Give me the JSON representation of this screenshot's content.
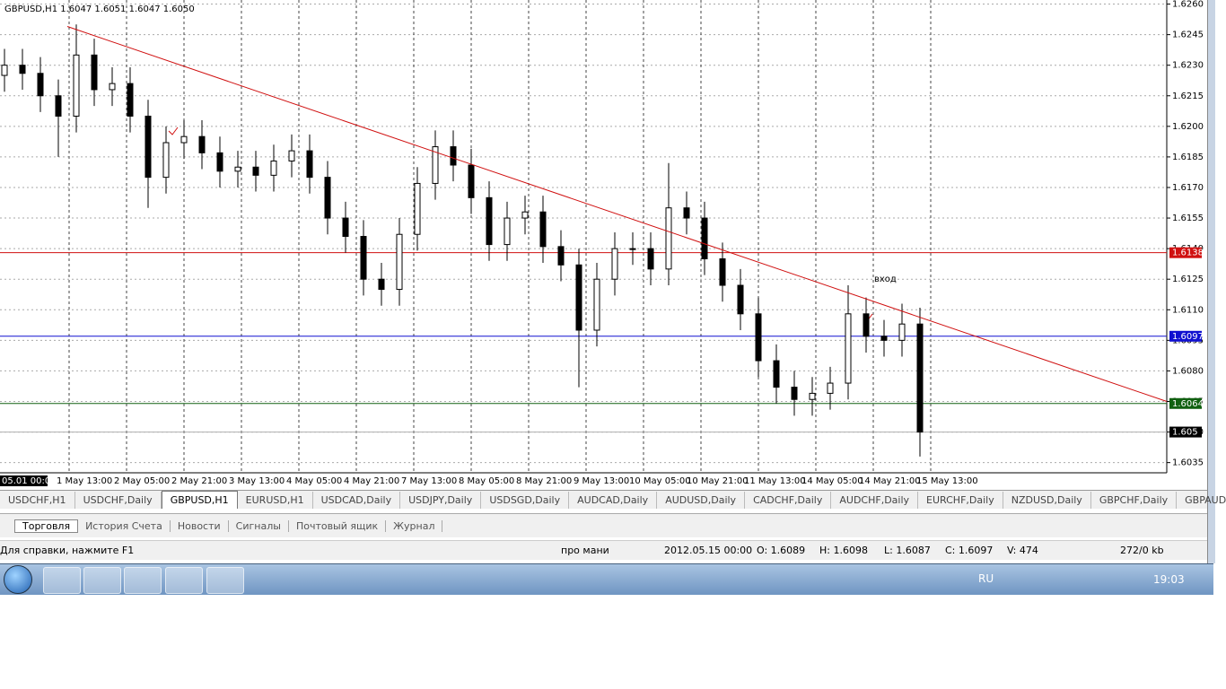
{
  "chart_data": {
    "type": "candlestick",
    "title": "GBPUSD,H1  1.6047 1.6051 1.6047 1.6050",
    "open": [
      1.6225,
      1.623,
      1.6226,
      1.6215,
      1.6205,
      1.6235,
      1.6218,
      1.6221,
      1.6205,
      1.6175,
      1.6192,
      1.6195,
      1.6187,
      1.6178,
      1.618,
      1.6176,
      1.6183,
      1.6188,
      1.6175,
      1.6155,
      1.6146,
      1.6125,
      1.612,
      1.6147,
      1.6172,
      1.619,
      1.6181,
      1.6165,
      1.6142,
      1.6155,
      1.6158,
      1.6141,
      1.6132,
      1.61,
      1.6125,
      1.614,
      1.614,
      1.613,
      1.616,
      1.6155,
      1.6135,
      1.6122,
      1.6108,
      1.6085,
      1.6072,
      1.6066,
      1.6069,
      1.6074,
      1.6108,
      1.6097,
      1.6095,
      1.6103
    ],
    "high": [
      1.6238,
      1.6238,
      1.6234,
      1.6223,
      1.625,
      1.6243,
      1.6229,
      1.6229,
      1.6213,
      1.62,
      1.6203,
      1.6203,
      1.6195,
      1.6188,
      1.6188,
      1.6191,
      1.6196,
      1.6196,
      1.6183,
      1.6163,
      1.6154,
      1.6133,
      1.6155,
      1.618,
      1.6198,
      1.6198,
      1.6189,
      1.6173,
      1.6163,
      1.6166,
      1.6166,
      1.6149,
      1.614,
      1.6133,
      1.6148,
      1.6148,
      1.6148,
      1.6182,
      1.6168,
      1.6163,
      1.6143,
      1.613,
      1.6116,
      1.6093,
      1.608,
      1.6077,
      1.6082,
      1.6122,
      1.6116,
      1.6105,
      1.6113,
      1.6111
    ],
    "low": [
      1.6217,
      1.6218,
      1.6207,
      1.6185,
      1.6197,
      1.621,
      1.621,
      1.6197,
      1.616,
      1.6167,
      1.6184,
      1.6179,
      1.617,
      1.617,
      1.6168,
      1.6168,
      1.6175,
      1.6167,
      1.6147,
      1.6138,
      1.6117,
      1.6112,
      1.6112,
      1.6139,
      1.6164,
      1.6173,
      1.6157,
      1.6134,
      1.6134,
      1.6147,
      1.6133,
      1.6124,
      1.6072,
      1.6092,
      1.6117,
      1.6132,
      1.6122,
      1.6122,
      1.6147,
      1.6127,
      1.6114,
      1.61,
      1.6077,
      1.6064,
      1.6058,
      1.6058,
      1.6061,
      1.6066,
      1.6089,
      1.6087,
      1.6087,
      1.6038
    ],
    "close": [
      1.623,
      1.6226,
      1.6215,
      1.6205,
      1.6235,
      1.6218,
      1.6221,
      1.6205,
      1.6175,
      1.6192,
      1.6195,
      1.6187,
      1.6178,
      1.618,
      1.6176,
      1.6183,
      1.6188,
      1.6175,
      1.6155,
      1.6146,
      1.6125,
      1.612,
      1.6147,
      1.6172,
      1.619,
      1.6181,
      1.6165,
      1.6142,
      1.6155,
      1.6158,
      1.6141,
      1.6132,
      1.61,
      1.6125,
      1.614,
      1.614,
      1.613,
      1.616,
      1.6155,
      1.6135,
      1.6122,
      1.6108,
      1.6085,
      1.6072,
      1.6066,
      1.6069,
      1.6074,
      1.6108,
      1.6097,
      1.6095,
      1.6103,
      1.605
    ],
    "ylim": [
      1.603,
      1.6262
    ],
    "yticks": [
      1.6035,
      {
        "value": 1.605,
        "label": "1.6050"
      },
      1.6065,
      {
        "value": 1.608,
        "label": "1.6080"
      },
      1.6095,
      {
        "value": 1.611,
        "label": "1.6110"
      },
      1.6125,
      {
        "value": 1.614,
        "label": "1.6140"
      },
      1.6155,
      {
        "value": 1.617,
        "label": "1.6170"
      },
      1.6185,
      {
        "value": 1.62,
        "label": "1.6200"
      },
      1.6215,
      {
        "value": 1.623,
        "label": "1.6230"
      },
      1.6245,
      {
        "value": 1.626,
        "label": "1.6260"
      }
    ],
    "x_labels": [
      "05.01 00:00",
      "1 May 13:00",
      "2 May 05:00",
      "2 May 21:00",
      "3 May 13:00",
      "4 May 05:00",
      "4 May 21:00",
      "7 May 13:00",
      "8 May 05:00",
      "8 May 21:00",
      "9 May 13:00",
      "10 May 05:00",
      "10 May 21:00",
      "11 May 13:00",
      "14 May 05:00",
      "14 May 21:00",
      "15 May 13:00"
    ],
    "levels": [
      {
        "value": 1.6138,
        "color": "#d01010"
      },
      {
        "value": 1.6097,
        "color": "#1010d0"
      },
      {
        "value": 1.6064,
        "color": "#106010"
      },
      {
        "value": 1.605,
        "color": "#b0b0b0"
      }
    ],
    "trendline": {
      "from": 1.6249,
      "to": 1.6065,
      "color": "#d01010"
    },
    "annotation": "вход",
    "bull_color": "#ffffff",
    "bear_color": "#000000",
    "grid": true
  },
  "symbol_tabs": [
    "USDCHF,H1",
    "USDCHF,Daily",
    "GBPUSD,H1",
    "EURUSD,H1",
    "USDCAD,Daily",
    "USDJPY,Daily",
    "USDSGD,Daily",
    "AUDCAD,Daily",
    "AUDUSD,Daily",
    "CADCHF,Daily",
    "AUDCHF,Daily",
    "EURCHF,Daily",
    "NZDUSD,Daily",
    "GBPCHF,Daily",
    "GBPAUD,Daily"
  ],
  "terminal_tabs": [
    "Торговля",
    "История Счета",
    "Новости",
    "Сигналы",
    "Почтовый ящик",
    "Журнал"
  ],
  "status_bar": [
    "Для справки, нажмите F1",
    "про мани",
    "2012.05.15 00:00",
    "O: 1.6089",
    "H: 1.6098",
    "L: 1.6087",
    "C: 1.6097",
    "V: 474",
    "272/0 kb"
  ],
  "taskbar": {
    "language": "RU",
    "time": "19:03"
  }
}
